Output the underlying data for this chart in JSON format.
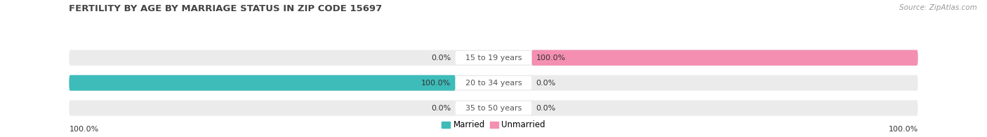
{
  "title": "FERTILITY BY AGE BY MARRIAGE STATUS IN ZIP CODE 15697",
  "source": "Source: ZipAtlas.com",
  "categories": [
    "15 to 19 years",
    "20 to 34 years",
    "35 to 50 years"
  ],
  "married_values": [
    0.0,
    100.0,
    0.0
  ],
  "unmarried_values": [
    100.0,
    0.0,
    0.0
  ],
  "married_color": "#3dbcba",
  "unmarried_color": "#f48fb1",
  "bar_bg_color": "#ebebeb",
  "bar_height": 0.62,
  "title_fontsize": 9.5,
  "label_fontsize": 8,
  "tick_fontsize": 8,
  "source_fontsize": 7.5,
  "legend_fontsize": 8.5,
  "background_color": "#ffffff",
  "title_color": "#444444",
  "source_color": "#999999",
  "text_color": "#333333",
  "center_label_color": "#555555",
  "bar_gap": 0.12,
  "max_val": 100.0
}
